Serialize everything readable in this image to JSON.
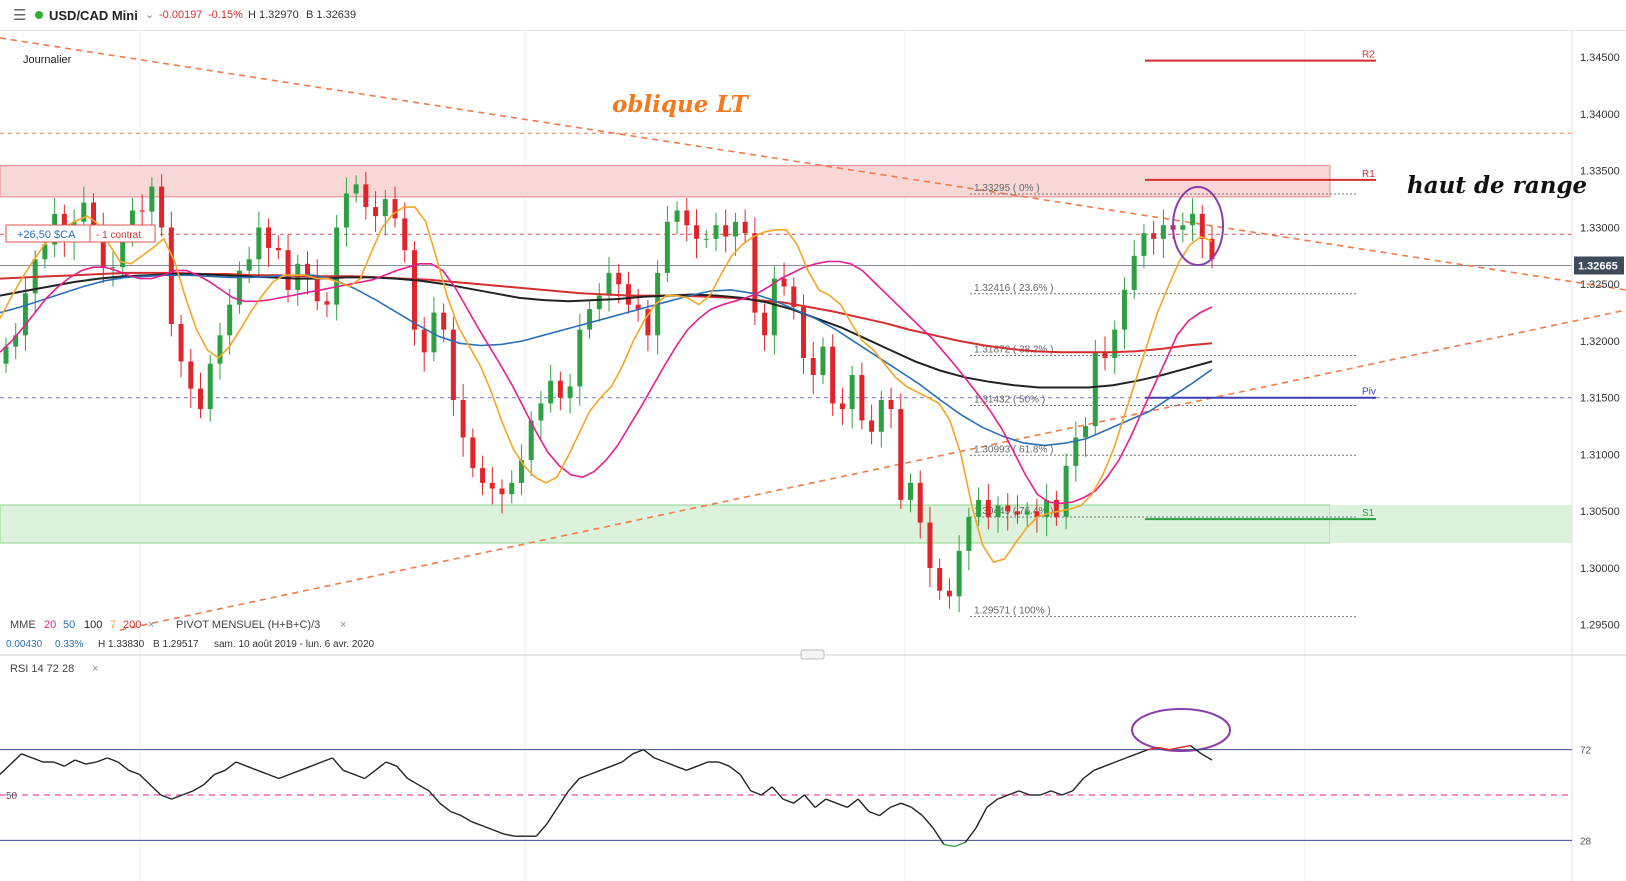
{
  "header": {
    "symbol": "USD/CAD Mini",
    "change": "-0.00197",
    "change_pct": "-0.15%",
    "high": "H 1.32970",
    "bid": "B 1.32639",
    "timeframe": "Journalier"
  },
  "position": {
    "pnl": "+26,50 $CA",
    "contracts": "- 1 contrat"
  },
  "annotations": {
    "oblique": "oblique LT",
    "range_top": "haut de range"
  },
  "indicators": {
    "mme_label": "MME",
    "mme_periods": [
      "20",
      "50",
      "100",
      "7",
      "200"
    ],
    "pivot_label": "PIVOT MENSUEL (H+B+C)/3",
    "stats_change": "0.00430",
    "stats_pct": "0.33%",
    "stats_high": "H 1.33830",
    "stats_low": "B 1.29517",
    "stats_range": "sam. 10 août 2019 - lun. 6 avr. 2020",
    "rsi_label": "RSI 14 72 28"
  },
  "chart_data": {
    "type": "candlestick",
    "instrument": "USD/CAD Mini",
    "timeframe": "Journalier",
    "ylim": [
      1.2948,
      1.3474
    ],
    "y_ticks": [
      "1.34500",
      "1.34000",
      "1.33500",
      "1.33000",
      "1.32500",
      "1.32000",
      "1.31500",
      "1.31000",
      "1.30500",
      "1.30000",
      "1.29500"
    ],
    "last_price": "1.32665",
    "closes": [
      1.3195,
      1.3205,
      1.3242,
      1.3272,
      1.3285,
      1.3312,
      1.3288,
      1.3305,
      1.3322,
      1.3302,
      1.3265,
      1.3265,
      1.3294,
      1.3315,
      1.3314,
      1.3336,
      1.33,
      1.3215,
      1.3182,
      1.3158,
      1.314,
      1.318,
      1.3205,
      1.3232,
      1.3262,
      1.3272,
      1.33,
      1.3282,
      1.328,
      1.3245,
      1.3268,
      1.3258,
      1.3235,
      1.3232,
      1.33,
      1.333,
      1.3338,
      1.3318,
      1.331,
      1.3325,
      1.3308,
      1.328,
      1.321,
      1.319,
      1.3225,
      1.321,
      1.3148,
      1.3115,
      1.3088,
      1.3075,
      1.307,
      1.3065,
      1.3075,
      1.3095,
      1.313,
      1.3145,
      1.3165,
      1.315,
      1.316,
      1.321,
      1.3228,
      1.324,
      1.326,
      1.325,
      1.3232,
      1.3228,
      1.3205,
      1.326,
      1.3305,
      1.3315,
      1.3302,
      1.329,
      1.329,
      1.3302,
      1.3292,
      1.3305,
      1.3295,
      1.3225,
      1.3205,
      1.3255,
      1.3248,
      1.323,
      1.3185,
      1.317,
      1.3195,
      1.3145,
      1.314,
      1.317,
      1.313,
      1.312,
      1.3148,
      1.314,
      1.306,
      1.3075,
      1.304,
      1.3,
      1.298,
      1.2975,
      1.3015,
      1.3045,
      1.306,
      1.3045,
      1.3055,
      1.305,
      1.3047,
      1.305,
      1.3045,
      1.306,
      1.3045,
      1.309,
      1.3115,
      1.3125,
      1.319,
      1.3185,
      1.321,
      1.3245,
      1.3275,
      1.3295,
      1.329,
      1.3302,
      1.3298,
      1.3302,
      1.3312,
      1.329,
      1.3272
    ],
    "ema_fast": [
      1.322,
      1.3238,
      1.3255,
      1.327,
      1.3284,
      1.3295,
      1.3301,
      1.3306,
      1.331,
      1.3303,
      1.3285,
      1.327,
      1.3268,
      1.3275,
      1.3282,
      1.329,
      1.327,
      1.3238,
      1.321,
      1.3192,
      1.3185,
      1.3195,
      1.321,
      1.3226,
      1.324,
      1.3252,
      1.3258,
      1.3258,
      1.3258,
      1.3255,
      1.3255,
      1.3252,
      1.3248,
      1.3255,
      1.3278,
      1.33,
      1.3312,
      1.3318,
      1.3318,
      1.3305,
      1.3272,
      1.3238,
      1.3212,
      1.3195,
      1.3178,
      1.3155,
      1.3128,
      1.3105,
      1.309,
      1.308,
      1.3075,
      1.308,
      1.3098,
      1.3118,
      1.3138,
      1.315,
      1.316,
      1.3178,
      1.32,
      1.3218,
      1.3232,
      1.324,
      1.324,
      1.3238,
      1.3232,
      1.324,
      1.3258,
      1.3275,
      1.3285,
      1.3292,
      1.3296,
      1.3298,
      1.3298,
      1.3285,
      1.3262,
      1.3245,
      1.324,
      1.3232,
      1.3215,
      1.32,
      1.3192,
      1.318,
      1.3168,
      1.316,
      1.3155,
      1.315,
      1.3145,
      1.313,
      1.31,
      1.3055,
      1.302,
      1.3005,
      1.3008,
      1.3022,
      1.3035,
      1.3045,
      1.3048,
      1.305,
      1.3052,
      1.3055,
      1.3065,
      1.3082,
      1.3105,
      1.3135,
      1.3165,
      1.3195,
      1.3225,
      1.3248,
      1.327,
      1.3285,
      1.3292,
      1.3288
    ],
    "ema_20": [
      1.319,
      1.32,
      1.3212,
      1.3225,
      1.3238,
      1.3248,
      1.3256,
      1.3262,
      1.3265,
      1.3265,
      1.3262,
      1.3258,
      1.3255,
      1.3255,
      1.3258,
      1.3262,
      1.3262,
      1.3258,
      1.3252,
      1.3245,
      1.3238,
      1.3235,
      1.3235,
      1.3236,
      1.3238,
      1.324,
      1.3242,
      1.3244,
      1.3246,
      1.3248,
      1.325,
      1.3252,
      1.3254,
      1.3258,
      1.3262,
      1.3265,
      1.3268,
      1.3268,
      1.3262,
      1.3248,
      1.323,
      1.3212,
      1.3195,
      1.3178,
      1.316,
      1.314,
      1.312,
      1.3102,
      1.309,
      1.3082,
      1.308,
      1.3085,
      1.3095,
      1.3108,
      1.3125,
      1.3142,
      1.316,
      1.3178,
      1.3195,
      1.321,
      1.322,
      1.3228,
      1.3232,
      1.3235,
      1.3238,
      1.3242,
      1.3248,
      1.3255,
      1.326,
      1.3265,
      1.3268,
      1.327,
      1.327,
      1.3268,
      1.3262,
      1.3252,
      1.3242,
      1.3232,
      1.3222,
      1.3212,
      1.3202,
      1.319,
      1.3178,
      1.3165,
      1.3152,
      1.3138,
      1.3122,
      1.3102,
      1.3082,
      1.3065,
      1.3058,
      1.3057,
      1.3058,
      1.3062,
      1.3068,
      1.308,
      1.3095,
      1.3115,
      1.3138,
      1.316,
      1.3182,
      1.3205,
      1.3218,
      1.3225,
      1.323
    ],
    "ema_50": [
      1.3225,
      1.323,
      1.3236,
      1.3242,
      1.3248,
      1.3253,
      1.3256,
      1.3257,
      1.3258,
      1.3258,
      1.3257,
      1.3256,
      1.3256,
      1.3257,
      1.3258,
      1.3258,
      1.3254,
      1.3246,
      1.3236,
      1.3225,
      1.3214,
      1.3204,
      1.3198,
      1.3196,
      1.3197,
      1.32,
      1.3205,
      1.321,
      1.3215,
      1.322,
      1.3225,
      1.323,
      1.3235,
      1.324,
      1.3244,
      1.3245,
      1.3242,
      1.3236,
      1.3228,
      1.322,
      1.321,
      1.3198,
      1.3186,
      1.3174,
      1.3162,
      1.3148,
      1.3135,
      1.3124,
      1.3116,
      1.311,
      1.3108,
      1.311,
      1.3114,
      1.3122,
      1.313,
      1.3138,
      1.315,
      1.3162,
      1.3175
    ],
    "ema_100": [
      1.324,
      1.3244,
      1.3248,
      1.3252,
      1.3255,
      1.3257,
      1.3258,
      1.3259,
      1.3259,
      1.3258,
      1.3257,
      1.3256,
      1.3255,
      1.3255,
      1.3256,
      1.3256,
      1.3255,
      1.3253,
      1.325,
      1.3246,
      1.3242,
      1.3238,
      1.3236,
      1.3235,
      1.3236,
      1.3237,
      1.3239,
      1.324,
      1.3241,
      1.324,
      1.3238,
      1.3234,
      1.3228,
      1.322,
      1.3212,
      1.3202,
      1.3192,
      1.3182,
      1.3174,
      1.3168,
      1.3164,
      1.3161,
      1.3159,
      1.3159,
      1.3159,
      1.3161,
      1.3165,
      1.317,
      1.3176,
      1.3182
    ],
    "ema_200": [
      1.3255,
      1.3256,
      1.3257,
      1.3258,
      1.3259,
      1.326,
      1.326,
      1.326,
      1.3259,
      1.3259,
      1.3258,
      1.3258,
      1.3257,
      1.3257,
      1.3257,
      1.3256,
      1.3255,
      1.3254,
      1.3252,
      1.325,
      1.3248,
      1.3246,
      1.3244,
      1.3242,
      1.3241,
      1.324,
      1.324,
      1.324,
      1.3239,
      1.3238,
      1.3236,
      1.3234,
      1.323,
      1.3226,
      1.3221,
      1.3216,
      1.321,
      1.3205,
      1.32,
      1.3196,
      1.3193,
      1.3191,
      1.319,
      1.319,
      1.319,
      1.3191,
      1.3193,
      1.3196,
      1.3198
    ],
    "horizontal_levels": [
      {
        "value": 1.3383,
        "style": "dashed",
        "color": "#f07a4a"
      },
      {
        "value": 1.3294,
        "style": "dashed",
        "color": "#e05555"
      },
      {
        "value": 1.32665,
        "style": "solid",
        "color": "#8a8aa0"
      },
      {
        "value": 1.315,
        "style": "dashed",
        "color": "#7a7ad0"
      }
    ],
    "zones": [
      {
        "from": 1.3327,
        "to": 1.33545,
        "color": "#f8d7d7"
      },
      {
        "from": 1.3022,
        "to": 1.30555,
        "color": "#dcf2dc"
      }
    ],
    "pivots": [
      {
        "label": "R2",
        "value": 1.3447,
        "color": "#d32f2f"
      },
      {
        "label": "R1",
        "value": 1.3342,
        "color": "#d32f2f"
      },
      {
        "label": "Piv",
        "value": 1.315,
        "color": "#3f3fb5"
      },
      {
        "label": "S1",
        "value": 1.3043,
        "color": "#2ea043"
      }
    ],
    "fibonacci": [
      {
        "label": "1.33295 ( 0% )",
        "value": 1.33295
      },
      {
        "label": "1.32416 ( 23.6% )",
        "value": 1.32416
      },
      {
        "label": "1.31872 ( 38.2% )",
        "value": 1.31872
      },
      {
        "label": "1.31432 ( 50% )",
        "value": 1.31432
      },
      {
        "label": "1.30993 ( 61.8% )",
        "value": 1.30993
      },
      {
        "label": "1.30449 ( 76.4% )",
        "value": 1.30449
      },
      {
        "label": "1.29571 ( 100% )",
        "value": 1.29571
      }
    ],
    "rsi": {
      "levels": [
        72,
        50,
        28
      ],
      "upper_label": "72",
      "mid_label": "50",
      "lower_label": "28",
      "values": [
        60,
        65,
        70,
        68,
        66,
        66,
        64,
        67,
        65,
        66,
        68,
        66,
        62,
        60,
        55,
        50,
        48,
        50,
        52,
        55,
        60,
        62,
        66,
        64,
        62,
        60,
        58,
        60,
        62,
        64,
        66,
        68,
        62,
        60,
        58,
        62,
        66,
        64,
        58,
        55,
        52,
        46,
        42,
        40,
        37,
        35,
        33,
        31,
        30,
        30,
        30,
        36,
        44,
        52,
        58,
        60,
        62,
        64,
        66,
        70,
        72,
        68,
        66,
        64,
        62,
        64,
        66,
        66,
        64,
        60,
        52,
        50,
        54,
        48,
        46,
        50,
        44,
        48,
        46,
        44,
        48,
        42,
        40,
        44,
        46,
        44,
        40,
        34,
        26,
        25,
        27,
        34,
        44,
        48,
        50,
        52,
        50,
        50,
        52,
        50,
        52,
        58,
        62,
        64,
        66,
        68,
        70,
        72,
        73,
        72,
        73,
        74,
        70,
        67
      ]
    }
  }
}
